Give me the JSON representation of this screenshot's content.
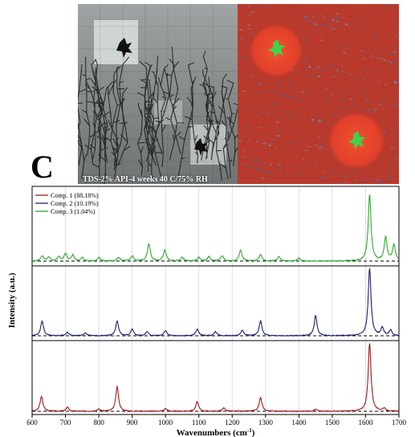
{
  "panel_label": "C",
  "micrograph": {
    "caption": "TDS-2% API-4 weeks 40 C/75% RH",
    "left_style": "grayscale dendritic crystal mosaic",
    "right_style": "false-color chemical map",
    "colors": {
      "left_dark": "#1f1f1f",
      "left_light": "#d8dcdc",
      "map_bg": "#c23a28",
      "map_blue": "#3a6fb8",
      "map_spot": "#e8452c",
      "map_green": "#3fd24a"
    }
  },
  "chart_data": {
    "type": "line",
    "title": "",
    "xlabel": "Wavenumbers (cm",
    "xlabel_sup": "-1",
    "xlabel_close": ")",
    "ylabel": "Intensity (a.u.)",
    "xlim": [
      600,
      1700
    ],
    "x_ticks": [
      600,
      700,
      800,
      900,
      1000,
      1100,
      1200,
      1300,
      1400,
      1500,
      1600,
      1700
    ],
    "grid": true,
    "legend": {
      "placement": "top-left",
      "entries": [
        "Comp. 1 (88.18%)",
        "Comp. 2 (10.19%)",
        "Comp. 3 (1.04%)"
      ]
    },
    "series": [
      {
        "name": "Comp. 1 (88.18%)",
        "color": "#a01818",
        "order": "bottom",
        "baseline": 0,
        "peaks": [
          {
            "x": 628,
            "y": 0.22
          },
          {
            "x": 706,
            "y": 0.06
          },
          {
            "x": 800,
            "y": 0.03
          },
          {
            "x": 855,
            "y": 0.36
          },
          {
            "x": 1000,
            "y": 0.04
          },
          {
            "x": 1095,
            "y": 0.14
          },
          {
            "x": 1175,
            "y": 0.05
          },
          {
            "x": 1285,
            "y": 0.2
          },
          {
            "x": 1450,
            "y": 0.03
          },
          {
            "x": 1612,
            "y": 1.0
          },
          {
            "x": 1655,
            "y": 0.04
          }
        ]
      },
      {
        "name": "Comp. 2 (10.19%)",
        "color": "#1a1f6e",
        "order": "middle",
        "baseline": 0,
        "peaks": [
          {
            "x": 630,
            "y": 0.22
          },
          {
            "x": 706,
            "y": 0.05
          },
          {
            "x": 760,
            "y": 0.04
          },
          {
            "x": 855,
            "y": 0.22
          },
          {
            "x": 900,
            "y": 0.1
          },
          {
            "x": 945,
            "y": 0.06
          },
          {
            "x": 1000,
            "y": 0.08
          },
          {
            "x": 1095,
            "y": 0.1
          },
          {
            "x": 1150,
            "y": 0.06
          },
          {
            "x": 1230,
            "y": 0.08
          },
          {
            "x": 1285,
            "y": 0.22
          },
          {
            "x": 1450,
            "y": 0.3
          },
          {
            "x": 1612,
            "y": 1.0
          },
          {
            "x": 1650,
            "y": 0.12
          },
          {
            "x": 1675,
            "y": 0.08
          }
        ]
      },
      {
        "name": "Comp. 3 (1.04%)",
        "color": "#2fa82f",
        "order": "top",
        "baseline": 0,
        "peaks": [
          {
            "x": 630,
            "y": 0.07
          },
          {
            "x": 650,
            "y": 0.05
          },
          {
            "x": 680,
            "y": 0.06
          },
          {
            "x": 700,
            "y": 0.1
          },
          {
            "x": 722,
            "y": 0.08
          },
          {
            "x": 750,
            "y": 0.05
          },
          {
            "x": 800,
            "y": 0.05
          },
          {
            "x": 860,
            "y": 0.05
          },
          {
            "x": 900,
            "y": 0.07
          },
          {
            "x": 950,
            "y": 0.24
          },
          {
            "x": 998,
            "y": 0.15
          },
          {
            "x": 1050,
            "y": 0.05
          },
          {
            "x": 1100,
            "y": 0.05
          },
          {
            "x": 1130,
            "y": 0.06
          },
          {
            "x": 1170,
            "y": 0.07
          },
          {
            "x": 1225,
            "y": 0.15
          },
          {
            "x": 1285,
            "y": 0.09
          },
          {
            "x": 1340,
            "y": 0.06
          },
          {
            "x": 1400,
            "y": 0.04
          },
          {
            "x": 1612,
            "y": 0.92
          },
          {
            "x": 1660,
            "y": 0.33
          },
          {
            "x": 1685,
            "y": 0.22
          }
        ]
      }
    ]
  }
}
